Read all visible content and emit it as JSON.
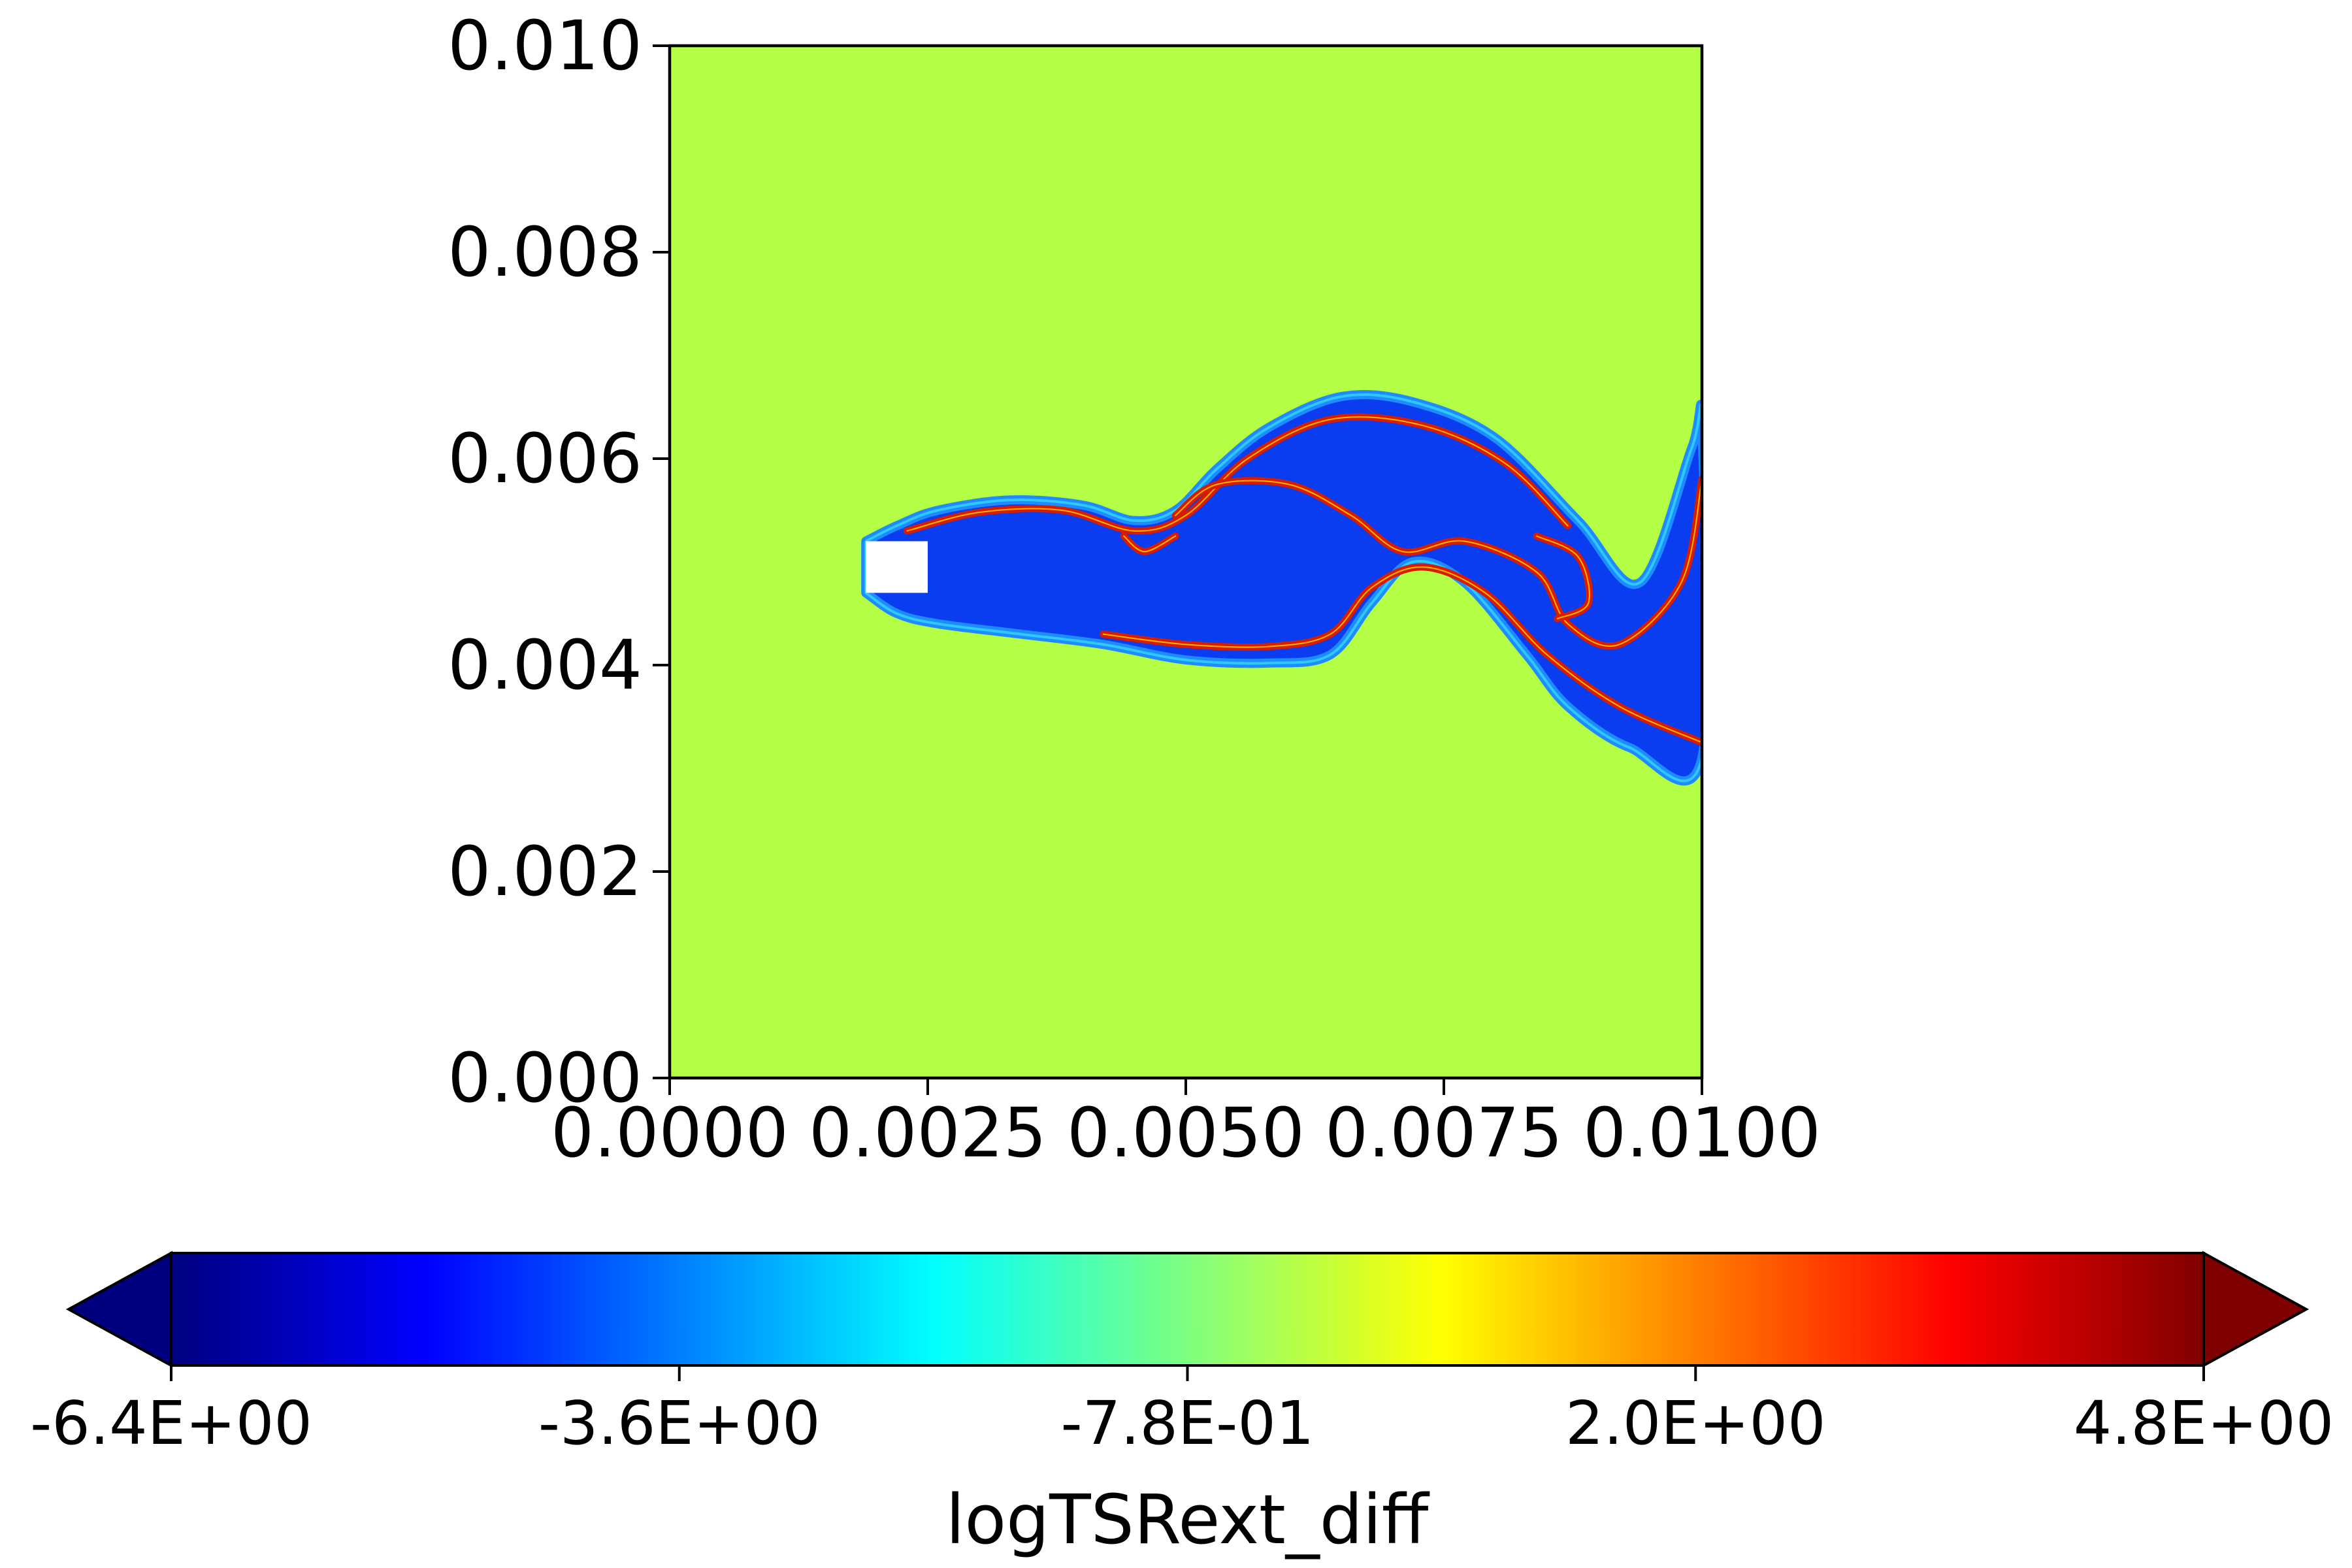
{
  "chart_data": {
    "type": "heatmap",
    "title": "",
    "xlabel": "",
    "ylabel": "",
    "xlim": [
      0.0,
      0.01
    ],
    "ylim": [
      0.0,
      0.01
    ],
    "x_ticks": [
      "0.0000",
      "0.0025",
      "0.0050",
      "0.0075",
      "0.0100"
    ],
    "x_tick_values": [
      0.0,
      0.0025,
      0.005,
      0.0075,
      0.01
    ],
    "y_ticks": [
      "0.000",
      "0.002",
      "0.004",
      "0.006",
      "0.008",
      "0.010"
    ],
    "y_tick_values": [
      0.0,
      0.002,
      0.004,
      0.006,
      0.008,
      0.01
    ],
    "background_color": "#b4ff46",
    "colorbar": {
      "label": "logTSRext_diff",
      "colormap": "jet",
      "extend": "both",
      "vmin": -6.4,
      "vmax": 4.8,
      "orientation": "horizontal",
      "ticks": [
        "-6.4E+00",
        "-3.6E+00",
        "-7.8E-01",
        "2.0E+00",
        "4.8E+00"
      ],
      "stops": [
        "#00007f",
        "#0000ff",
        "#007fff",
        "#00ffff",
        "#7fff7f",
        "#ffff00",
        "#ff7f00",
        "#ff0000",
        "#7f0000"
      ]
    },
    "obstacle": {
      "x": [
        0.0019,
        0.0025
      ],
      "y": [
        0.0047,
        0.0052
      ],
      "color": "#ffffff"
    },
    "field_colors": {
      "core": "#0a3cf0",
      "edge": "#1e8cff",
      "ridge": "#d81c00"
    },
    "wake_outline": {
      "upper_edge": [
        [
          0.0019,
          0.0052
        ],
        [
          0.0022,
          0.00535
        ],
        [
          0.0026,
          0.0055
        ],
        [
          0.0033,
          0.0056
        ],
        [
          0.004,
          0.00555
        ],
        [
          0.0045,
          0.0054
        ],
        [
          0.0049,
          0.0055
        ],
        [
          0.0053,
          0.0059
        ],
        [
          0.0058,
          0.0063
        ],
        [
          0.0065,
          0.0066
        ],
        [
          0.0072,
          0.00655
        ],
        [
          0.008,
          0.0062
        ],
        [
          0.0088,
          0.0054
        ],
        [
          0.0094,
          0.0048
        ],
        [
          0.0099,
          0.0061
        ],
        [
          0.01,
          0.0063
        ]
      ],
      "lower_edge": [
        [
          0.01,
          0.0031
        ],
        [
          0.0093,
          0.0032
        ],
        [
          0.0087,
          0.0036
        ],
        [
          0.0083,
          0.0041
        ],
        [
          0.0077,
          0.0048
        ],
        [
          0.0072,
          0.005
        ],
        [
          0.0068,
          0.0046
        ],
        [
          0.0064,
          0.0041
        ],
        [
          0.0058,
          0.00402
        ],
        [
          0.005,
          0.00405
        ],
        [
          0.0042,
          0.0042
        ],
        [
          0.0034,
          0.0043
        ],
        [
          0.0026,
          0.0044
        ],
        [
          0.0022,
          0.0045
        ],
        [
          0.0019,
          0.0047
        ]
      ],
      "ridges": [
        [
          [
            0.0023,
            0.0053
          ],
          [
            0.003,
            0.00548
          ],
          [
            0.0038,
            0.0055
          ],
          [
            0.0045,
            0.0053
          ],
          [
            0.005,
            0.00545
          ],
          [
            0.0056,
            0.006
          ],
          [
            0.0064,
            0.00638
          ],
          [
            0.0073,
            0.00632
          ],
          [
            0.0081,
            0.00595
          ],
          [
            0.0087,
            0.00535
          ]
        ],
        [
          [
            0.0042,
            0.0043
          ],
          [
            0.005,
            0.0042
          ],
          [
            0.0058,
            0.00418
          ],
          [
            0.0064,
            0.0043
          ],
          [
            0.0068,
            0.00475
          ],
          [
            0.0073,
            0.00495
          ],
          [
            0.0079,
            0.0047
          ],
          [
            0.0085,
            0.0041
          ],
          [
            0.0092,
            0.0036
          ],
          [
            0.01,
            0.00325
          ]
        ],
        [
          [
            0.0049,
            0.00545
          ],
          [
            0.0053,
            0.00575
          ],
          [
            0.006,
            0.00575
          ],
          [
            0.0066,
            0.00545
          ],
          [
            0.0071,
            0.0051
          ],
          [
            0.0077,
            0.0052
          ],
          [
            0.0084,
            0.0049
          ],
          [
            0.0087,
            0.0044
          ],
          [
            0.0092,
            0.0042
          ],
          [
            0.0098,
            0.0048
          ],
          [
            0.01,
            0.0058
          ]
        ],
        [
          [
            0.0044,
            0.00525
          ],
          [
            0.0046,
            0.0051
          ],
          [
            0.0049,
            0.00525
          ]
        ],
        [
          [
            0.0084,
            0.00525
          ],
          [
            0.0088,
            0.00505
          ],
          [
            0.0089,
            0.0046
          ],
          [
            0.0086,
            0.00445
          ]
        ]
      ]
    }
  }
}
